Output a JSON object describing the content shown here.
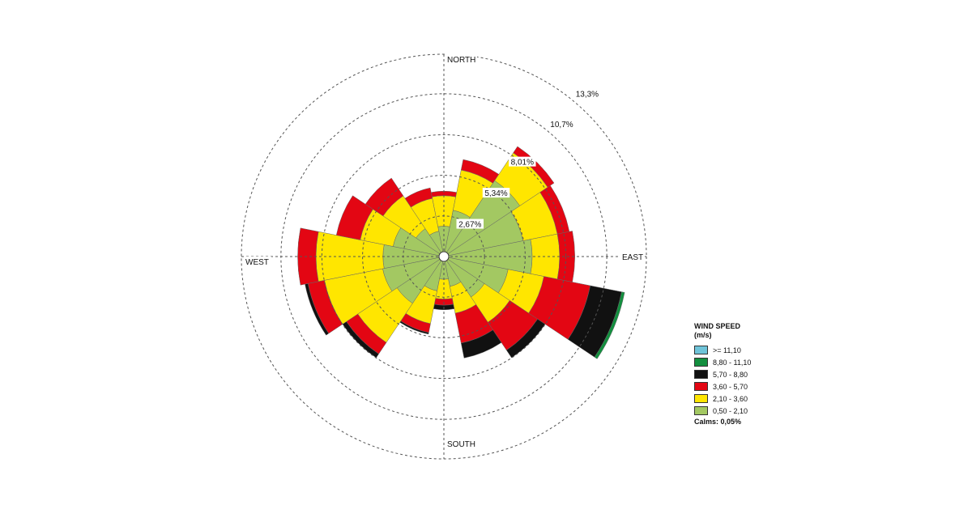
{
  "chart_data": {
    "type": "wind-rose",
    "direction_labels": {
      "north": "NORTH",
      "east": "EAST",
      "south": "SOUTH",
      "west": "WEST"
    },
    "ring_values": [
      2.67,
      5.34,
      8.01,
      10.7,
      13.3
    ],
    "ring_labels": [
      "2,67%",
      "5,34%",
      "8,01%",
      "10,7%",
      "13,3%"
    ],
    "directions": [
      "N",
      "NNE",
      "NE",
      "ENE",
      "E",
      "ESE",
      "SE",
      "SSE",
      "S",
      "SSW",
      "SW",
      "WSW",
      "W",
      "WNW",
      "NW",
      "NNW"
    ],
    "speed_bins": [
      {
        "label": ">= 11,10",
        "color": "#6fc4d9"
      },
      {
        "label": "8,80 - 11,10",
        "color": "#138f3f"
      },
      {
        "label": "5,70 - 8,80",
        "color": "#111111"
      },
      {
        "label": "3,60 - 5,70",
        "color": "#e30613"
      },
      {
        "label": "2,10 - 3,60",
        "color": "#ffe600"
      },
      {
        "label": "0,50 - 2,10",
        "color": "#a3c862"
      }
    ],
    "cumulative": [
      [
        2.0,
        4.0,
        4.3,
        4.3,
        4.3,
        4.3
      ],
      [
        3.1,
        5.8,
        6.5,
        6.5,
        6.5,
        6.5
      ],
      [
        6.0,
        8.2,
        8.7,
        8.7,
        8.7,
        8.7
      ],
      [
        5.3,
        7.6,
        8.4,
        8.4,
        8.4,
        8.4
      ],
      [
        5.8,
        7.6,
        8.6,
        8.6,
        8.6,
        8.6
      ],
      [
        4.3,
        6.7,
        9.8,
        11.9,
        12.1,
        12.1
      ],
      [
        3.2,
        5.2,
        7.4,
        8.0,
        8.0,
        8.0
      ],
      [
        2.0,
        3.8,
        5.8,
        6.8,
        6.8,
        6.8
      ],
      [
        1.5,
        2.8,
        3.2,
        3.5,
        3.5,
        3.5
      ],
      [
        2.3,
        4.5,
        5.1,
        5.2,
        5.2,
        5.2
      ],
      [
        3.7,
        6.8,
        7.7,
        8.0,
        8.0,
        8.0
      ],
      [
        4.1,
        8.0,
        9.1,
        9.3,
        9.3,
        9.3
      ],
      [
        4.0,
        8.4,
        9.6,
        9.6,
        9.6,
        9.6
      ],
      [
        3.4,
        5.6,
        7.2,
        7.2,
        7.2,
        7.2
      ],
      [
        2.2,
        4.8,
        6.2,
        6.2,
        6.2,
        6.2
      ],
      [
        1.7,
        3.9,
        4.6,
        4.6,
        4.6,
        4.6
      ]
    ],
    "legend_title": "WIND SPEED",
    "legend_unit": "(m/s)",
    "calms": "Calms: 0,05%"
  }
}
